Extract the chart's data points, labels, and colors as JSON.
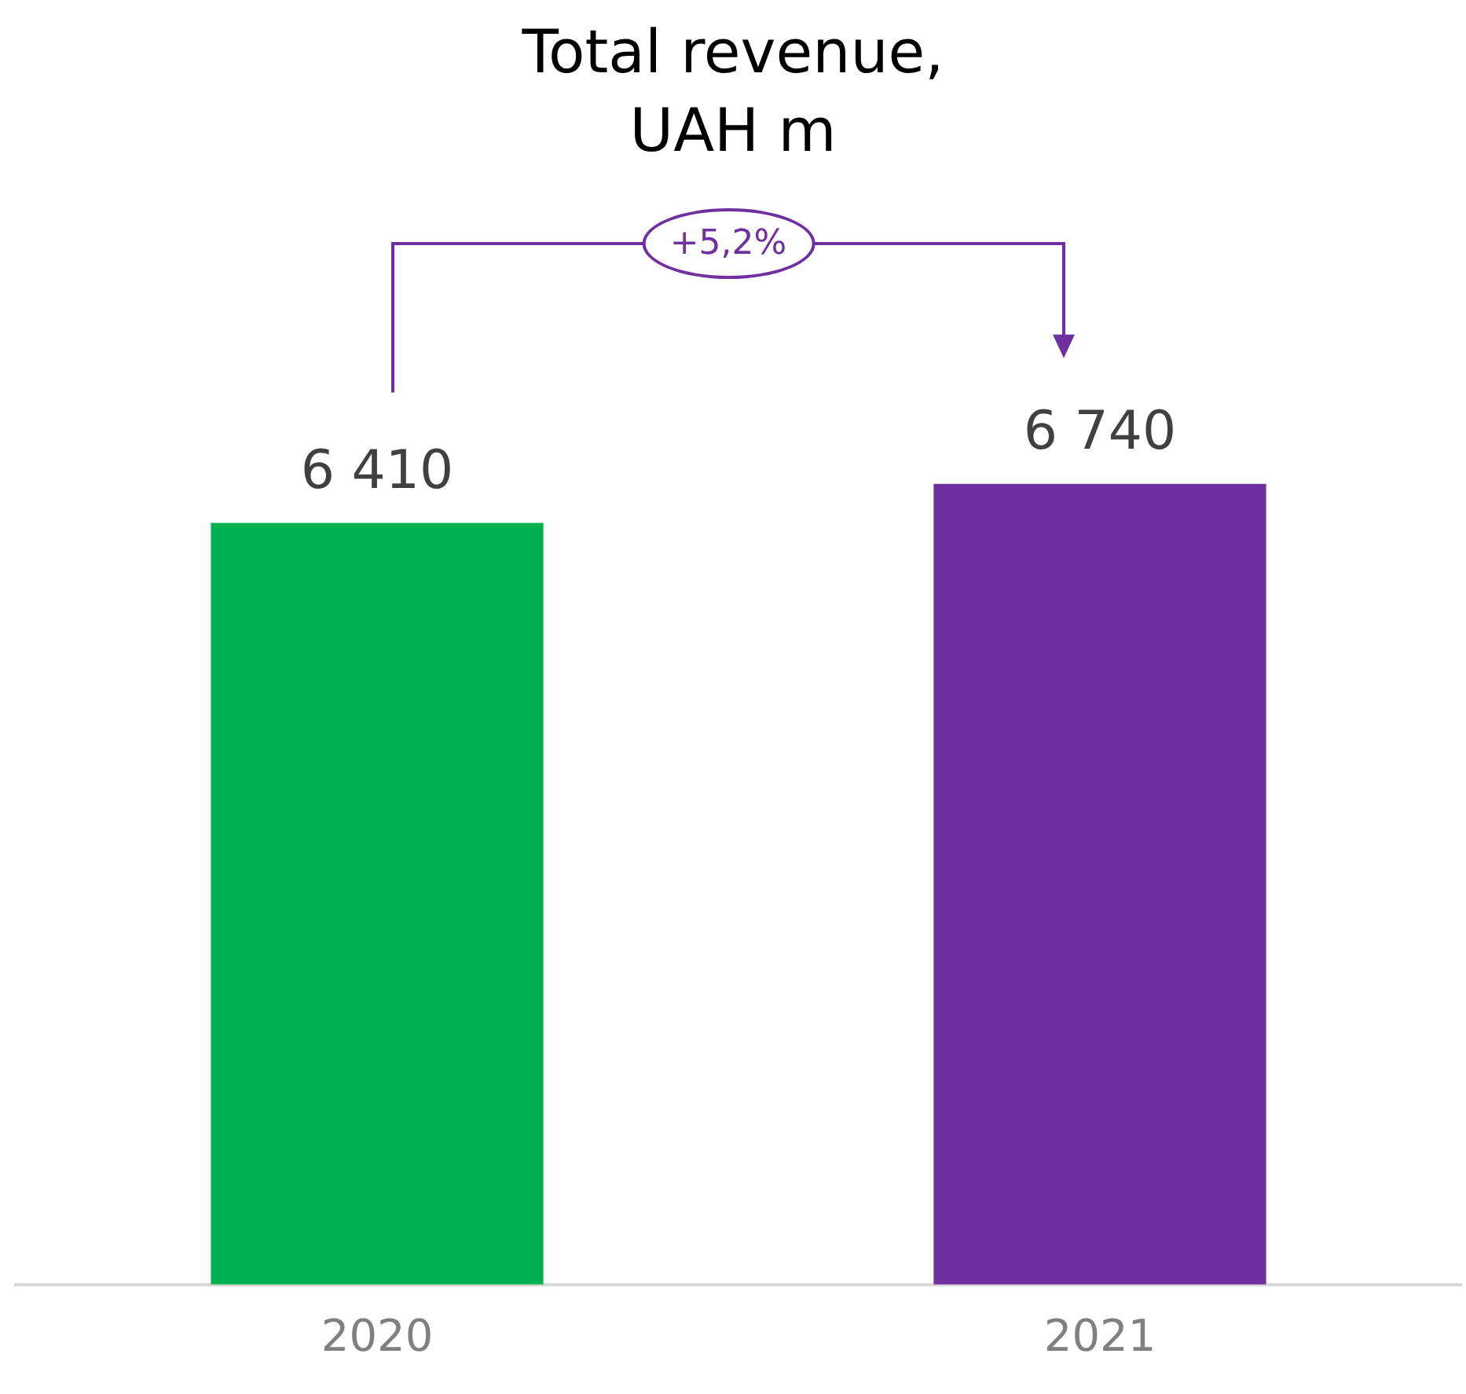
{
  "chart_data": {
    "type": "bar",
    "title": "Total revenue,\nUAH m",
    "categories": [
      "2020",
      "2021"
    ],
    "values": [
      6410,
      6740
    ],
    "colors": [
      "#00b050",
      "#7030a0"
    ],
    "value_labels": [
      "6 410",
      "6 740"
    ],
    "grid": false,
    "legend": false,
    "annotations": [
      "+5,2%"
    ]
  }
}
